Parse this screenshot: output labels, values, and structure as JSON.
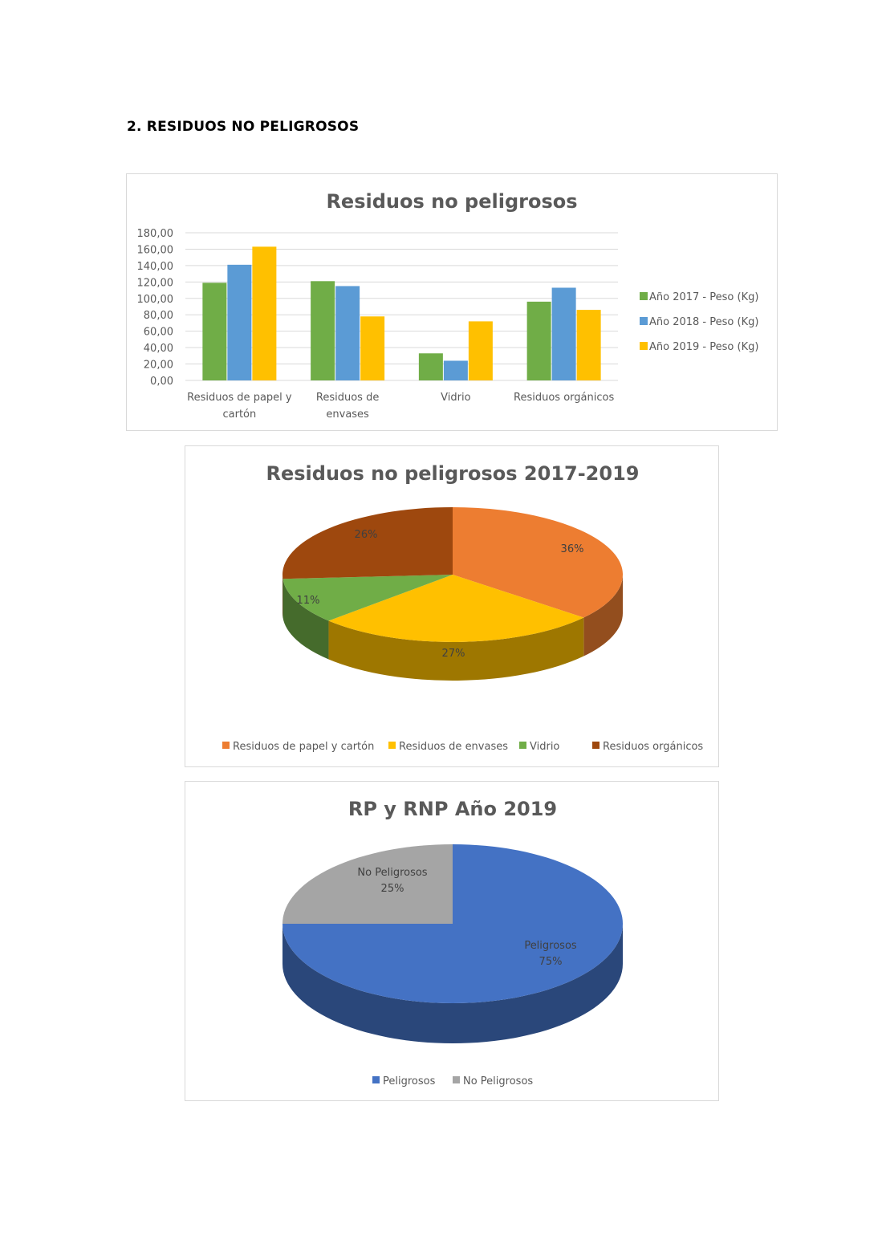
{
  "page": {
    "section_heading": "2.  RESIDUOS NO PELIGROSOS"
  },
  "chart_data": [
    {
      "type": "bar",
      "title": "Residuos no peligrosos",
      "categories": [
        [
          "Residuos de papel y",
          "cartón"
        ],
        [
          "Residuos de",
          "envases"
        ],
        [
          "Vidrio"
        ],
        [
          "Residuos orgánicos"
        ]
      ],
      "series": [
        {
          "name": "Año 2017 - Peso (Kg)",
          "color": "#70ad47",
          "values": [
            119,
            121,
            33,
            96
          ]
        },
        {
          "name": "Año 2018 - Peso (Kg)",
          "color": "#5b9bd5",
          "values": [
            141,
            115,
            24,
            113
          ]
        },
        {
          "name": "Año 2019 - Peso (Kg)",
          "color": "#ffc000",
          "values": [
            163,
            78,
            72,
            86
          ]
        }
      ],
      "ylim": [
        0,
        180
      ],
      "yticks": [
        "0,00",
        "20,00",
        "40,00",
        "60,00",
        "80,00",
        "100,00",
        "120,00",
        "140,00",
        "160,00",
        "180,00"
      ],
      "grid": true,
      "legend": "right"
    },
    {
      "type": "pie",
      "title": "Residuos no peligrosos 2017-2019",
      "labels": [
        "Residuos de papel y cartón",
        "Residuos de envases",
        "Vidrio",
        "Residuos orgánicos"
      ],
      "values": [
        36,
        27,
        11,
        26
      ],
      "data_labels": [
        "36%",
        "27%",
        "11%",
        "26%"
      ],
      "colors": [
        "#ed7d31",
        "#ffc000",
        "#70ad47",
        "#9e480e"
      ],
      "legend": "bottom",
      "style": "3d"
    },
    {
      "type": "pie",
      "title": "RP y RNP Año 2019",
      "labels": [
        "Peligrosos",
        "No Peligrosos"
      ],
      "values": [
        75,
        25
      ],
      "data_labels": [
        [
          "Peligrosos",
          "75%"
        ],
        [
          "No Peligrosos",
          "25%"
        ]
      ],
      "colors": [
        "#4472c4",
        "#a5a5a5"
      ],
      "legend": "bottom",
      "style": "3d"
    }
  ]
}
